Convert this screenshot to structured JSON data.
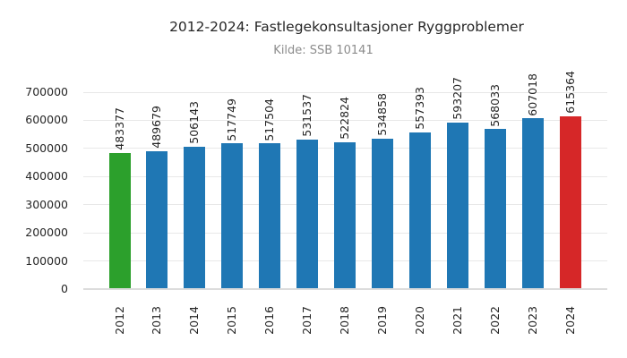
{
  "chart_data": {
    "type": "bar",
    "title": "2012-2024: Fastlegekonsultasjoner Ryggproblemer",
    "subtitle": "Kilde: SSB 10141",
    "xlabel": "",
    "ylabel": "",
    "categories": [
      "2012",
      "2013",
      "2014",
      "2015",
      "2016",
      "2017",
      "2018",
      "2019",
      "2020",
      "2021",
      "2022",
      "2023",
      "2024"
    ],
    "values": [
      483377,
      489679,
      506143,
      517749,
      517504,
      531537,
      522824,
      534858,
      557393,
      593207,
      568033,
      607018,
      615364
    ],
    "bar_colors": [
      "#2ca02c",
      "#1f77b4",
      "#1f77b4",
      "#1f77b4",
      "#1f77b4",
      "#1f77b4",
      "#1f77b4",
      "#1f77b4",
      "#1f77b4",
      "#1f77b4",
      "#1f77b4",
      "#1f77b4",
      "#d62728"
    ],
    "value_labels": [
      "483377",
      "489679",
      "506143",
      "517749",
      "517504",
      "531537",
      "522824",
      "534858",
      "557393",
      "593207",
      "568033",
      "607018",
      "615364"
    ],
    "value_label_rotation": 90,
    "x_tick_rotation": 90,
    "yticks": [
      0,
      100000,
      200000,
      300000,
      400000,
      500000,
      600000,
      700000
    ],
    "ytick_labels": [
      "0",
      "100000",
      "200000",
      "300000",
      "400000",
      "500000",
      "600000",
      "700000"
    ],
    "ylim": [
      0,
      700000
    ],
    "grid": true,
    "grid_color": "#e8e8e8",
    "background_color": "#ffffff",
    "title_color": "#262626",
    "subtitle_color": "#8c8c8c",
    "legend": "none"
  }
}
